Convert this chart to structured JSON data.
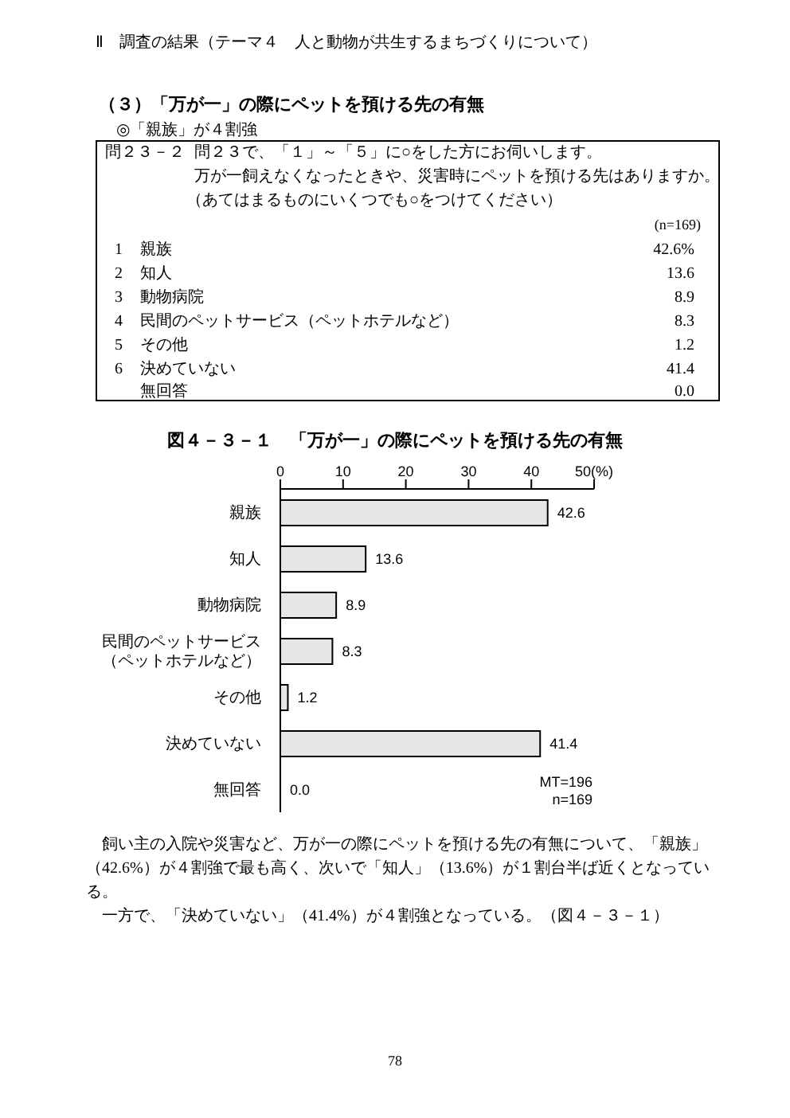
{
  "chart_data": {
    "type": "bar",
    "title": "図４－３－１　「万が一」の際にペットを預ける先の有無",
    "orientation": "horizontal",
    "categories": [
      "親族",
      "知人",
      "動物病院",
      "民間のペットサービス（ペットホテルなど）",
      "その他",
      "決めていない",
      "無回答"
    ],
    "values": [
      42.6,
      13.6,
      8.9,
      8.3,
      1.2,
      41.4,
      0.0
    ],
    "value_labels": [
      "42.6",
      "13.6",
      "8.9",
      "8.3",
      "1.2",
      "41.4",
      "0.0"
    ],
    "color": "#e6e6e6",
    "xlim": [
      0,
      50
    ],
    "xticks": [
      0,
      10,
      20,
      30,
      40,
      {
        "value": 50,
        "label": "50(%)"
      }
    ],
    "annotations": [
      "Ⅱ　調査の結果（テーマ４　人と動物が共生するまちづくりについて）",
      "（３）「万が一」の際にペットを預ける先の有無",
      "◎「親族」が４割強",
      "問２３－２",
      "問２３で、「１」～「５」に○をした方にお伺いします。",
      "万が一飼えなくなったときや、災害時にペットを預ける先はありますか。",
      "（あてはまるものにいくつでも○をつけてください）",
      "(n=169)",
      "1",
      "親族",
      "42.6%",
      "2",
      "知人",
      "13.6",
      "3",
      "動物病院",
      "8.9",
      "4",
      "民間のペットサービス（ペットホテルなど）",
      "8.3",
      "5",
      "その他",
      "1.2",
      "6",
      "決めていない",
      "41.4",
      "無回答",
      "0.0",
      "MT=196",
      "n=169",
      "飼い主の入院や災害など、万が一の際にペットを預ける先の有無について、「親族」（42.6%）が４割強で最も高く、次いで「知人」（13.6%）が１割台半ば近くとなっている。",
      "一方で、「決めていない」（41.4%）が４割強となっている。（図４－３－１）",
      "78"
    ]
  }
}
